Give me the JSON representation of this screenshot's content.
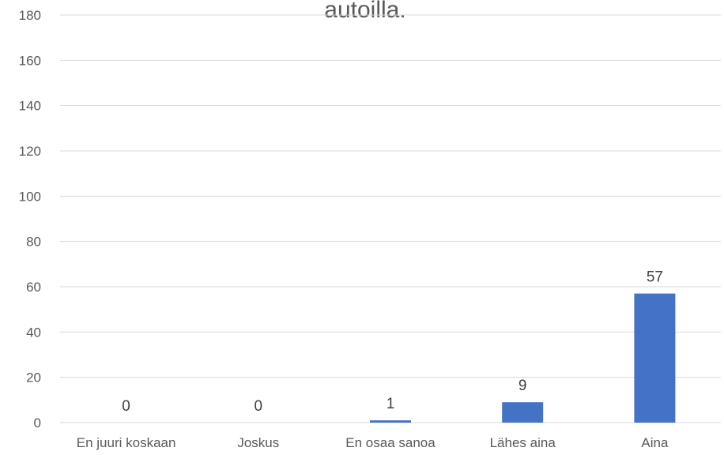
{
  "chart_data": {
    "type": "bar",
    "title": "autoilla.",
    "categories": [
      "En juuri koskaan",
      "Joskus",
      "En osaa sanoa",
      "Lähes aina",
      "Aina"
    ],
    "values": [
      0,
      0,
      1,
      9,
      57
    ],
    "data_labels": [
      "0",
      "0",
      "1",
      "9",
      "57"
    ],
    "ylim": [
      0,
      180
    ],
    "yticks": [
      0,
      20,
      40,
      60,
      80,
      100,
      120,
      140,
      160,
      180
    ],
    "grid": true,
    "legend": "none",
    "xlabel": "",
    "ylabel": "",
    "bar_color": "#4472C4",
    "grid_color": "#D9D9D9"
  }
}
